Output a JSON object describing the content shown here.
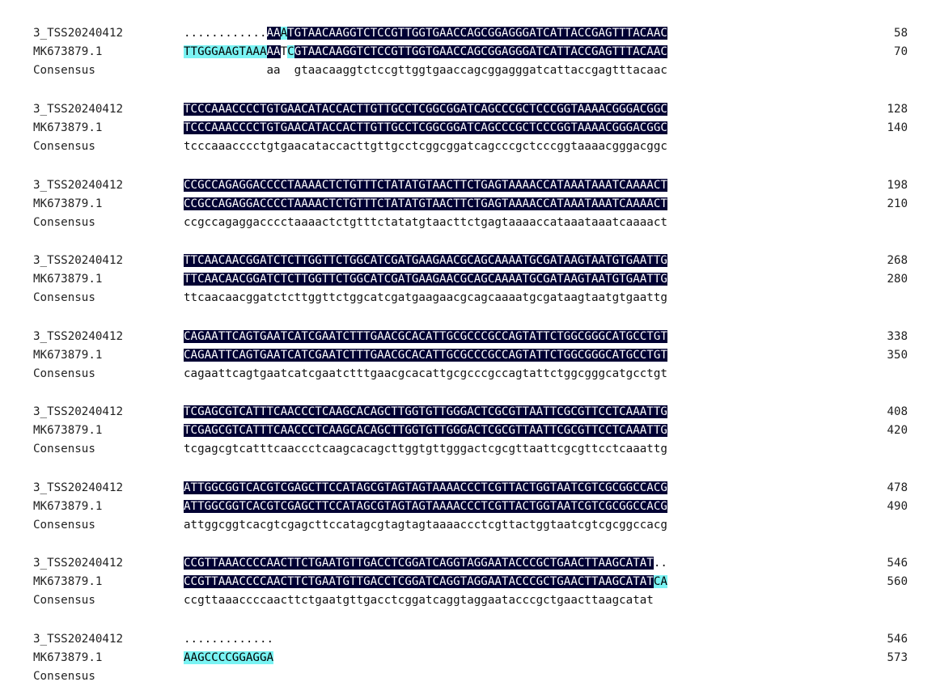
{
  "colors": {
    "identical_bg": "#000033",
    "identical_fg": "#ffffff",
    "similar_bg": "#7af3f3",
    "plain_fg": "#111111"
  },
  "blocks": [
    {
      "rows": [
        {
          "name": "3_TSS20240412",
          "num": "58",
          "segs": [
            {
              "t": "............",
              "s": "plain"
            },
            {
              "t": "AA",
              "s": "dark"
            },
            {
              "t": "A",
              "s": "cyan"
            },
            {
              "t": "TGTAACAAGGTCTCCGTTGGTGAACCAGCGGAGGGATCATTACCGAGTTTACAAC",
              "s": "dark"
            }
          ]
        },
        {
          "name": "MK673879.1",
          "num": "70",
          "segs": [
            {
              "t": "TTGGGAAGTAAA",
              "s": "cyan"
            },
            {
              "t": "AA",
              "s": "dark"
            },
            {
              "t": "T",
              "s": "plain"
            },
            {
              "t": "C",
              "s": "cyan"
            },
            {
              "t": "GTAACAAGGTCTCCGTTGGTGAACCAGCGGAGGGATCATTACCGAGTTTACAAC",
              "s": "dark"
            }
          ]
        },
        {
          "name": "Consensus",
          "num": "",
          "segs": [
            {
              "t": "            aa  gtaacaaggtctccgttggtgaaccagcggagggatcattaccgagtttacaac",
              "s": "plain"
            }
          ]
        }
      ]
    },
    {
      "rows": [
        {
          "name": "3_TSS20240412",
          "num": "128",
          "segs": [
            {
              "t": "TCCCAAACCCCTGTGAACATACCACTTGTTGCCTCGGCGGATCAGCCCGCTCCCGGTAAAACGGGACGGC",
              "s": "dark"
            }
          ]
        },
        {
          "name": "MK673879.1",
          "num": "140",
          "segs": [
            {
              "t": "TCCCAAACCCCTGTGAACATACCACTTGTTGCCTCGGCGGATCAGCCCGCTCCCGGTAAAACGGGACGGC",
              "s": "dark"
            }
          ]
        },
        {
          "name": "Consensus",
          "num": "",
          "segs": [
            {
              "t": "tcccaaacccctgtgaacataccacttgttgcctcggcggatcagcccgctcccggtaaaacgggacggc",
              "s": "plain"
            }
          ]
        }
      ]
    },
    {
      "rows": [
        {
          "name": "3_TSS20240412",
          "num": "198",
          "segs": [
            {
              "t": "CCGCCAGAGGACCCCTAAAACTCTGTTTCTATATGTAACTTCTGAGTAAAACCATAAATAAATCAAAACT",
              "s": "dark"
            }
          ]
        },
        {
          "name": "MK673879.1",
          "num": "210",
          "segs": [
            {
              "t": "CCGCCAGAGGACCCCTAAAACTCTGTTTCTATATGTAACTTCTGAGTAAAACCATAAATAAATCAAAACT",
              "s": "dark"
            }
          ]
        },
        {
          "name": "Consensus",
          "num": "",
          "segs": [
            {
              "t": "ccgccagaggacccctaaaactctgtttctatatgtaacttctgagtaaaaccataaataaatcaaaact",
              "s": "plain"
            }
          ]
        }
      ]
    },
    {
      "rows": [
        {
          "name": "3_TSS20240412",
          "num": "268",
          "segs": [
            {
              "t": "TTCAACAACGGATCTCTTGGTTCTGGCATCGATGAAGAACGCAGCAAAATGCGATAAGTAATGTGAATTG",
              "s": "dark"
            }
          ]
        },
        {
          "name": "MK673879.1",
          "num": "280",
          "segs": [
            {
              "t": "TTCAACAACGGATCTCTTGGTTCTGGCATCGATGAAGAACGCAGCAAAATGCGATAAGTAATGTGAATTG",
              "s": "dark"
            }
          ]
        },
        {
          "name": "Consensus",
          "num": "",
          "segs": [
            {
              "t": "ttcaacaacggatctcttggttctggcatcgatgaagaacgcagcaaaatgcgataagtaatgtgaattg",
              "s": "plain"
            }
          ]
        }
      ]
    },
    {
      "rows": [
        {
          "name": "3_TSS20240412",
          "num": "338",
          "segs": [
            {
              "t": "CAGAATTCAGTGAATCATCGAATCTTTGAACGCACATTGCGCCCGCCAGTATTCTGGCGGGCATGCCTGT",
              "s": "dark"
            }
          ]
        },
        {
          "name": "MK673879.1",
          "num": "350",
          "segs": [
            {
              "t": "CAGAATTCAGTGAATCATCGAATCTTTGAACGCACATTGCGCCCGCCAGTATTCTGGCGGGCATGCCTGT",
              "s": "dark"
            }
          ]
        },
        {
          "name": "Consensus",
          "num": "",
          "segs": [
            {
              "t": "cagaattcagtgaatcatcgaatctttgaacgcacattgcgcccgccagtattctggcgggcatgcctgt",
              "s": "plain"
            }
          ]
        }
      ]
    },
    {
      "rows": [
        {
          "name": "3_TSS20240412",
          "num": "408",
          "segs": [
            {
              "t": "TCGAGCGTCATTTCAACCCTCAAGCACAGCTTGGTGTTGGGACTCGCGTTAATTCGCGTTCCTCAAATTG",
              "s": "dark"
            }
          ]
        },
        {
          "name": "MK673879.1",
          "num": "420",
          "segs": [
            {
              "t": "TCGAGCGTCATTTCAACCCTCAAGCACAGCTTGGTGTTGGGACTCGCGTTAATTCGCGTTCCTCAAATTG",
              "s": "dark"
            }
          ]
        },
        {
          "name": "Consensus",
          "num": "",
          "segs": [
            {
              "t": "tcgagcgtcatttcaaccctcaagcacagcttggtgttgggactcgcgttaattcgcgttcctcaaattg",
              "s": "plain"
            }
          ]
        }
      ]
    },
    {
      "rows": [
        {
          "name": "3_TSS20240412",
          "num": "478",
          "segs": [
            {
              "t": "ATTGGCGGTCACGTCGAGCTTCCATAGCGTAGTAGTAAAACCCTCGTTACTGGTAATCGTCGCGGCCACG",
              "s": "dark"
            }
          ]
        },
        {
          "name": "MK673879.1",
          "num": "490",
          "segs": [
            {
              "t": "ATTGGCGGTCACGTCGAGCTTCCATAGCGTAGTAGTAAAACCCTCGTTACTGGTAATCGTCGCGGCCACG",
              "s": "dark"
            }
          ]
        },
        {
          "name": "Consensus",
          "num": "",
          "segs": [
            {
              "t": "attggcggtcacgtcgagcttccatagcgtagtagtaaaaccctcgttactggtaatcgtcgcggccacg",
              "s": "plain"
            }
          ]
        }
      ]
    },
    {
      "rows": [
        {
          "name": "3_TSS20240412",
          "num": "546",
          "segs": [
            {
              "t": "CCGTTAAACCCCAACTTCTGAATGTTGACCTCGGATCAGGTAGGAATACCCGCTGAACTTAAGCATAT",
              "s": "dark"
            },
            {
              "t": "..",
              "s": "plain"
            }
          ]
        },
        {
          "name": "MK673879.1",
          "num": "560",
          "segs": [
            {
              "t": "CCGTTAAACCCCAACTTCTGAATGTTGACCTCGGATCAGGTAGGAATACCCGCTGAACTTAAGCATAT",
              "s": "dark"
            },
            {
              "t": "CA",
              "s": "cyan"
            }
          ]
        },
        {
          "name": "Consensus",
          "num": "",
          "segs": [
            {
              "t": "ccgttaaaccccaacttctgaatgttgacctcggatcaggtaggaatacccgctgaacttaagcatat",
              "s": "plain"
            }
          ]
        }
      ]
    },
    {
      "rows": [
        {
          "name": "3_TSS20240412",
          "num": "546",
          "segs": [
            {
              "t": ".............",
              "s": "plain"
            }
          ]
        },
        {
          "name": "MK673879.1",
          "num": "573",
          "segs": [
            {
              "t": "AAGCCCCGGAGGA",
              "s": "cyan"
            }
          ]
        },
        {
          "name": "Consensus",
          "num": "",
          "segs": []
        }
      ]
    }
  ]
}
